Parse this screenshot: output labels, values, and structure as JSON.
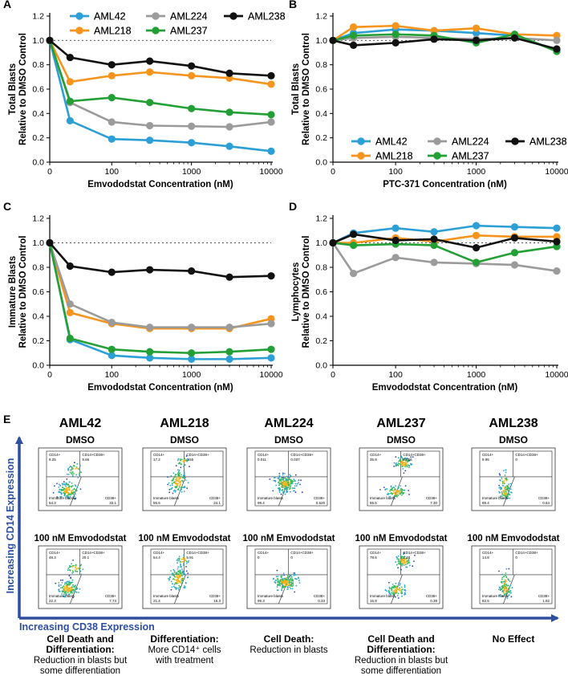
{
  "colors": {
    "AML42": "#2b9fd6",
    "AML218": "#f7941d",
    "AML224": "#9b9b9b",
    "AML237": "#23a035",
    "AML238": "#111111",
    "axis_blue": "#2e4f9e"
  },
  "chart_data": [
    {
      "id": "A",
      "panel_label": "A",
      "type": "line",
      "xscale": "log",
      "x": [
        0,
        30,
        100,
        300,
        1000,
        3000,
        10000
      ],
      "x_ticks": [
        "0",
        "100",
        "1000",
        "10000"
      ],
      "xlabel": "Emvododstat Concentration (nM)",
      "ylabel_line1": "Total Blasts",
      "ylabel_line2": "Relative to DMSO Control",
      "ylim": [
        0,
        1.2
      ],
      "y_ticks": [
        "0.0",
        "0.2",
        "0.4",
        "0.6",
        "0.8",
        "1.0",
        "1.2"
      ],
      "reference_line": 1.0,
      "legend_position": "top",
      "series": [
        {
          "name": "AML42",
          "values": [
            1.0,
            0.34,
            0.19,
            0.18,
            0.16,
            0.13,
            0.09
          ]
        },
        {
          "name": "AML218",
          "values": [
            1.0,
            0.66,
            0.71,
            0.74,
            0.71,
            0.69,
            0.64
          ]
        },
        {
          "name": "AML224",
          "values": [
            1.0,
            0.49,
            0.33,
            0.3,
            0.295,
            0.29,
            0.33
          ]
        },
        {
          "name": "AML237",
          "values": [
            1.0,
            0.5,
            0.53,
            0.49,
            0.44,
            0.41,
            0.39
          ]
        },
        {
          "name": "AML238",
          "values": [
            1.0,
            0.86,
            0.8,
            0.83,
            0.79,
            0.73,
            0.71
          ]
        }
      ]
    },
    {
      "id": "B",
      "panel_label": "B",
      "type": "line",
      "xscale": "log",
      "x": [
        0,
        30,
        100,
        300,
        1000,
        3000,
        10000
      ],
      "x_ticks": [
        "0",
        "100",
        "1000",
        "10000"
      ],
      "xlabel": "PTC-371 Concentration (nM)",
      "ylabel_line1": "Total Blasts",
      "ylabel_line2": "Relative to DMSO Control",
      "ylim": [
        0,
        1.2
      ],
      "y_ticks": [
        "0.0",
        "0.2",
        "0.4",
        "0.6",
        "0.8",
        "1.0",
        "1.2"
      ],
      "reference_line": 1.0,
      "legend_position": "bottom",
      "series": [
        {
          "name": "AML42",
          "values": [
            1.0,
            1.06,
            1.09,
            1.08,
            1.06,
            1.04,
            0.92
          ]
        },
        {
          "name": "AML218",
          "values": [
            1.0,
            1.11,
            1.12,
            1.08,
            1.1,
            1.05,
            1.04
          ]
        },
        {
          "name": "AML224",
          "values": [
            1.0,
            1.02,
            1.03,
            1.02,
            1.01,
            1.02,
            1.0
          ]
        },
        {
          "name": "AML237",
          "values": [
            1.0,
            1.04,
            1.05,
            1.04,
            0.98,
            1.05,
            0.91
          ]
        },
        {
          "name": "AML238",
          "values": [
            1.0,
            0.96,
            0.98,
            1.01,
            1.0,
            1.02,
            0.93
          ]
        }
      ]
    },
    {
      "id": "C",
      "panel_label": "C",
      "type": "line",
      "xscale": "log",
      "x": [
        0,
        30,
        100,
        300,
        1000,
        3000,
        10000
      ],
      "x_ticks": [
        "0",
        "100",
        "1000",
        "10000"
      ],
      "xlabel": "Emvododstat Concentration (nM)",
      "ylabel_line1": "Immature Blasts",
      "ylabel_line2": "Relative to DMSO Control",
      "ylim": [
        0,
        1.2
      ],
      "y_ticks": [
        "0.0",
        "0.2",
        "0.4",
        "0.6",
        "0.8",
        "1.0",
        "1.2"
      ],
      "reference_line": 1.0,
      "legend_position": "top",
      "series": [
        {
          "name": "AML42",
          "values": [
            1.0,
            0.21,
            0.08,
            0.06,
            0.05,
            0.05,
            0.06
          ]
        },
        {
          "name": "AML218",
          "values": [
            1.0,
            0.43,
            0.34,
            0.3,
            0.3,
            0.3,
            0.38
          ]
        },
        {
          "name": "AML224",
          "values": [
            1.0,
            0.5,
            0.35,
            0.31,
            0.31,
            0.31,
            0.34
          ]
        },
        {
          "name": "AML237",
          "values": [
            1.0,
            0.22,
            0.13,
            0.11,
            0.1,
            0.11,
            0.13
          ]
        },
        {
          "name": "AML238",
          "values": [
            1.0,
            0.81,
            0.76,
            0.78,
            0.77,
            0.72,
            0.73
          ]
        }
      ]
    },
    {
      "id": "D",
      "panel_label": "D",
      "type": "line",
      "xscale": "log",
      "x": [
        0,
        30,
        100,
        300,
        1000,
        3000,
        10000
      ],
      "x_ticks": [
        "0",
        "100",
        "1000",
        "10000"
      ],
      "xlabel": "Emvododstat Concentration (nM)",
      "ylabel_line1": "Lymphocytes",
      "ylabel_line2": "Relative to DMSO Control",
      "ylim": [
        0,
        1.2
      ],
      "y_ticks": [
        "0.0",
        "0.2",
        "0.4",
        "0.6",
        "0.8",
        "1.0",
        "1.2"
      ],
      "reference_line": 1.0,
      "legend_position": "bottom",
      "series": [
        {
          "name": "AML42",
          "values": [
            1.0,
            1.08,
            1.12,
            1.09,
            1.14,
            1.13,
            1.12
          ]
        },
        {
          "name": "AML218",
          "values": [
            1.0,
            1.0,
            1.04,
            1.01,
            1.06,
            1.05,
            1.05
          ]
        },
        {
          "name": "AML224",
          "values": [
            1.0,
            0.75,
            0.88,
            0.84,
            0.83,
            0.82,
            0.77
          ]
        },
        {
          "name": "AML237",
          "values": [
            1.0,
            0.98,
            0.99,
            0.98,
            0.84,
            0.92,
            0.97
          ]
        },
        {
          "name": "AML238",
          "values": [
            1.0,
            1.07,
            1.02,
            1.03,
            0.96,
            1.04,
            1.01
          ]
        }
      ]
    }
  ],
  "panel_e": {
    "label": "E",
    "y_axis_label": "Increasing CD14 Expression",
    "x_axis_label": "Increasing CD38 Expression",
    "row_labels": [
      "DMSO",
      "100 nM Emvododstat"
    ],
    "columns": [
      {
        "title": "AML42",
        "caption_bold": [
          "Cell Death and",
          "Differentiation:"
        ],
        "caption": [
          "Reduction in blasts but",
          "some differentiation"
        ],
        "plots": [
          {
            "cd14": "8.25",
            "cd14cd38": "9.66",
            "blasts": "54.3",
            "cd38": "33.1"
          },
          {
            "cd14": "48.3",
            "cd14cd38": "20.1",
            "blasts": "22.3",
            "cd38": "7.74"
          }
        ]
      },
      {
        "title": "AML218",
        "caption_bold": [
          "Differentiation:"
        ],
        "caption": [
          "More CD14⁺ cells",
          "with treatment"
        ],
        "plots": [
          {
            "cd14": "17.2",
            "cd14cd38": "3.55",
            "blasts": "55.6",
            "cd38": "24.1"
          },
          {
            "cd14": "54.4",
            "cd14cd38": "5.91",
            "blasts": "21.4",
            "cd38": "16.3"
          }
        ]
      },
      {
        "title": "AML224",
        "caption_bold": [
          "Cell Death:"
        ],
        "caption": [
          "Reduction in blasts"
        ],
        "plots": [
          {
            "cd14": "0.011",
            "cd14cd38": "0.037",
            "blasts": "99.4",
            "cd38": "0.526"
          },
          {
            "cd14": "0",
            "cd14cd38": "0",
            "blasts": "99.3",
            "cd38": "0.33"
          }
        ]
      },
      {
        "title": "AML237",
        "caption_bold": [
          "Cell Death and",
          "Differentiation:"
        ],
        "caption": [
          "Reduction in blasts but",
          "some differentiation"
        ],
        "plots": [
          {
            "cd14": "35.8",
            "cd14cd38": "0.056",
            "blasts": "55.5",
            "cd38": "7.30"
          },
          {
            "cd14": "78.6",
            "cd14cd38": "2.48",
            "blasts": "16.9",
            "cd38": "0.39"
          }
        ]
      },
      {
        "title": "AML238",
        "caption_bold": [
          "No Effect"
        ],
        "caption": [],
        "plots": [
          {
            "cd14": "9.95",
            "cd14cd38": "0",
            "blasts": "89.4",
            "cd38": "0.64"
          },
          {
            "cd14": "14.8",
            "cd14cd38": "0",
            "blasts": "82.5",
            "cd38": "1.82"
          }
        ]
      }
    ],
    "gate_names": {
      "cd14": "CD14+",
      "cd14cd38": "CD14+CD38+",
      "blasts": "Immature blasts",
      "cd38": "CD38+"
    }
  }
}
